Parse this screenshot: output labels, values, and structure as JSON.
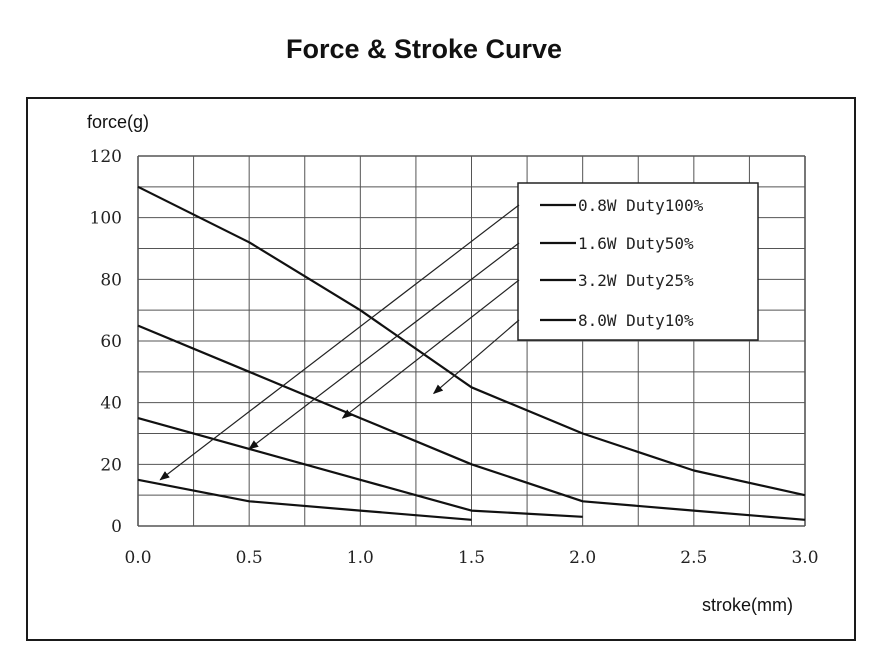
{
  "chart_data": {
    "type": "line",
    "title": "Force & Stroke Curve",
    "xlabel": "stroke(mm)",
    "ylabel": "force(g)",
    "xlim": [
      0,
      3
    ],
    "ylim": [
      0,
      120
    ],
    "x_ticks": [
      "0.0",
      "0.5",
      "1.0",
      "1.5",
      "2.0",
      "2.5",
      "3.0"
    ],
    "y_ticks": [
      "0",
      "20",
      "40",
      "60",
      "80",
      "100",
      "120"
    ],
    "grid": true,
    "legend_position": "top-right",
    "series": [
      {
        "name": "0.8W Duty100%",
        "x": [
          0,
          0.5,
          1.0,
          1.5
        ],
        "y": [
          15,
          8,
          5,
          2
        ]
      },
      {
        "name": "1.6W Duty50%",
        "x": [
          0,
          0.5,
          1.0,
          1.5,
          2.0
        ],
        "y": [
          35,
          25,
          15,
          5,
          3
        ]
      },
      {
        "name": "3.2W Duty25%",
        "x": [
          0,
          0.5,
          1.0,
          1.5,
          2.0,
          2.5,
          3.0
        ],
        "y": [
          65,
          50,
          35,
          20,
          8,
          5,
          2
        ]
      },
      {
        "name": "8.0W Duty10%",
        "x": [
          0,
          0.5,
          1.0,
          1.5,
          2.0,
          2.5,
          3.0
        ],
        "y": [
          110,
          92,
          70,
          45,
          30,
          18,
          10
        ]
      }
    ],
    "legend": {
      "entries": [
        "0.8W Duty100%",
        "1.6W Duty50%",
        "3.2W Duty25%",
        "8.0W Duty10%"
      ]
    }
  }
}
